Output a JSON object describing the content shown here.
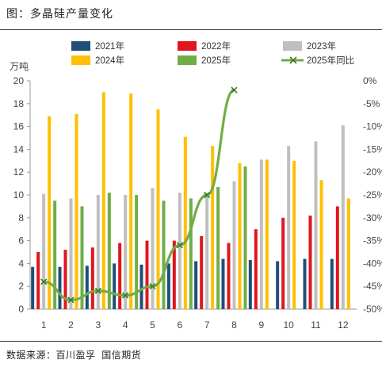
{
  "figure": {
    "title": "图：多晶硅产量变化",
    "source": "数据来源：百川盈孚 国信期货"
  },
  "colors": {
    "2021年": "#1f4e79",
    "2022年": "#e0161e",
    "2023年": "#bfbfbf",
    "2024年": "#ffc000",
    "2025年": "#70ad47",
    "2025年同比": "#70ad47"
  },
  "chart_data": {
    "type": "bar",
    "categories": [
      "1",
      "2",
      "3",
      "4",
      "5",
      "6",
      "7",
      "8",
      "9",
      "10",
      "11",
      "12"
    ],
    "ylabel": "万吨",
    "ylim": [
      0,
      20
    ],
    "yticks": [
      0,
      2,
      4,
      6,
      8,
      10,
      12,
      14,
      16,
      18,
      20
    ],
    "y2lim": [
      -50,
      0
    ],
    "y2ticks": [
      "0%",
      "-5%",
      "-10%",
      "-15%",
      "-20%",
      "-25%",
      "-30%",
      "-35%",
      "-40%",
      "-45%",
      "-50%"
    ],
    "legend": "top",
    "grid": false,
    "series": [
      {
        "name": "2021年",
        "values": [
          3.7,
          3.7,
          3.8,
          4.0,
          3.9,
          4.0,
          4.2,
          4.4,
          4.3,
          4.2,
          4.4,
          4.4
        ]
      },
      {
        "name": "2022年",
        "values": [
          5.0,
          5.2,
          5.4,
          5.8,
          6.0,
          6.0,
          6.4,
          5.8,
          7.0,
          8.0,
          8.2,
          9.0
        ]
      },
      {
        "name": "2023年",
        "values": [
          10.1,
          9.7,
          10.0,
          10.0,
          10.6,
          10.2,
          10.2,
          11.2,
          13.1,
          14.3,
          14.7,
          16.1
        ]
      },
      {
        "name": "2024年",
        "values": [
          16.9,
          17.1,
          19.0,
          18.9,
          17.5,
          15.1,
          14.3,
          12.8,
          13.1,
          13.0,
          11.3,
          9.7
        ]
      },
      {
        "name": "2025年",
        "values": [
          9.5,
          9.0,
          10.2,
          10.0,
          9.5,
          9.7,
          10.7,
          12.5,
          null,
          null,
          null,
          null
        ]
      },
      {
        "name": "2025年同比",
        "type": "line",
        "axis": "right",
        "values": [
          -44,
          -48,
          -46,
          -47,
          -45,
          -36,
          -25,
          -2,
          null,
          null,
          null,
          null
        ]
      }
    ]
  }
}
